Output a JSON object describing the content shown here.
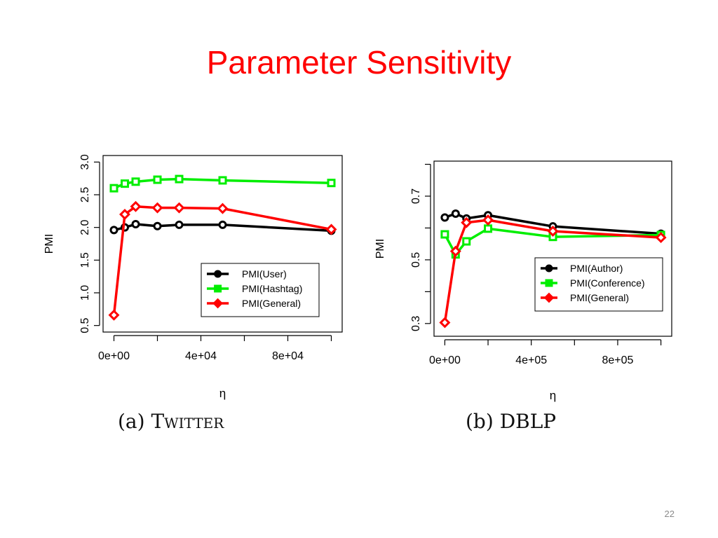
{
  "slide": {
    "title": "Parameter Sensitivity",
    "page_number": "22"
  },
  "chart_data": [
    {
      "type": "line",
      "caption_prefix": "(a)",
      "caption_name": "Twitter",
      "xlabel": "η",
      "ylabel": "PMI",
      "xlim": [
        -5000,
        105000
      ],
      "ylim": [
        0.4,
        3.1
      ],
      "x_ticks": [
        0,
        20000,
        40000,
        60000,
        80000,
        100000
      ],
      "x_tick_labels": [
        "0e+00",
        "",
        "4e+04",
        "",
        "8e+04",
        ""
      ],
      "y_ticks": [
        0.5,
        1.0,
        1.5,
        2.0,
        2.5,
        3.0
      ],
      "y_tick_labels": [
        "0.5",
        "1.0",
        "1.5",
        "2.0",
        "2.5",
        "3.0"
      ],
      "legend_position": "bottom-right",
      "series": [
        {
          "name": "PMI(User)",
          "color": "#000000",
          "marker": "circle",
          "x": [
            0,
            5000,
            10000,
            20000,
            30000,
            50000,
            100000
          ],
          "y": [
            1.96,
            2.0,
            2.05,
            2.02,
            2.04,
            2.04,
            1.95
          ]
        },
        {
          "name": "PMI(Hashtag)",
          "color": "#00ee00",
          "marker": "square",
          "x": [
            0,
            5000,
            10000,
            20000,
            30000,
            50000,
            100000
          ],
          "y": [
            2.6,
            2.67,
            2.7,
            2.73,
            2.74,
            2.72,
            2.68
          ]
        },
        {
          "name": "PMI(General)",
          "color": "#ff0000",
          "marker": "diamond",
          "x": [
            0,
            5000,
            10000,
            20000,
            30000,
            50000,
            100000
          ],
          "y": [
            0.66,
            2.2,
            2.32,
            2.3,
            2.3,
            2.29,
            1.97
          ]
        }
      ]
    },
    {
      "type": "line",
      "caption_prefix": "(b)",
      "caption_name": "DBLP",
      "xlabel": "η",
      "ylabel": "PMI",
      "xlim": [
        -50000,
        1050000
      ],
      "ylim": [
        0.26,
        0.81
      ],
      "x_ticks": [
        0,
        200000,
        400000,
        600000,
        800000,
        1000000
      ],
      "x_tick_labels": [
        "0e+00",
        "",
        "4e+05",
        "",
        "8e+05",
        ""
      ],
      "y_ticks": [
        0.3,
        0.4,
        0.5,
        0.6,
        0.7,
        0.8
      ],
      "y_tick_labels": [
        "0.3",
        "",
        "0.5",
        "",
        "0.7",
        ""
      ],
      "legend_position": "right",
      "series": [
        {
          "name": "PMI(Author)",
          "color": "#000000",
          "marker": "circle",
          "x": [
            0,
            50000,
            100000,
            200000,
            500000,
            1000000
          ],
          "y": [
            0.633,
            0.645,
            0.63,
            0.64,
            0.605,
            0.582
          ]
        },
        {
          "name": "PMI(Conference)",
          "color": "#00ee00",
          "marker": "square",
          "x": [
            0,
            50000,
            100000,
            200000,
            500000,
            1000000
          ],
          "y": [
            0.58,
            0.517,
            0.558,
            0.598,
            0.572,
            0.578
          ]
        },
        {
          "name": "PMI(General)",
          "color": "#ff0000",
          "marker": "diamond",
          "x": [
            0,
            50000,
            100000,
            200000,
            500000,
            1000000
          ],
          "y": [
            0.303,
            0.527,
            0.617,
            0.625,
            0.59,
            0.57
          ]
        }
      ]
    }
  ]
}
